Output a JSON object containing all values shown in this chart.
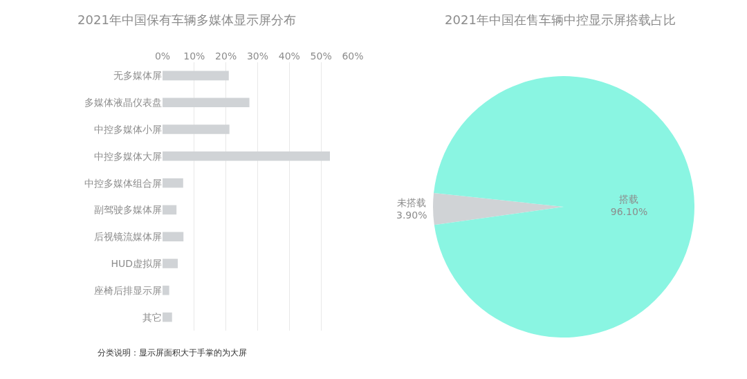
{
  "chart_data": [
    {
      "type": "bar",
      "orientation": "horizontal",
      "title": "2021年中国保有车辆多媒体显示屏分布",
      "categories": [
        "无多媒体屏",
        "多媒体液晶仪表盘",
        "中控多媒体小屏",
        "中控多媒体大屏",
        "中控多媒体组合屏",
        "副驾驶多媒体屏",
        "后视镜流媒体屏",
        "HUD虚拟屏",
        "座椅后排显示屏",
        "其它"
      ],
      "values": [
        20.9,
        27.4,
        21.1,
        52.8,
        6.5,
        4.4,
        6.6,
        4.8,
        2.1,
        3.0
      ],
      "color": "#d0d3d6",
      "xlim": [
        0,
        60
      ],
      "xticks": [
        {
          "value": 0,
          "label": "0%"
        },
        {
          "value": 10,
          "label": "10%"
        },
        {
          "value": 20,
          "label": "20%"
        },
        {
          "value": 30,
          "label": "30%"
        },
        {
          "value": 40,
          "label": "40%"
        },
        {
          "value": 50,
          "label": "50%"
        },
        {
          "value": 60,
          "label": "60%"
        }
      ],
      "grid": "x",
      "legend": false,
      "annotations": [
        "分类说明：显示屏面积大于手掌的为大屏"
      ]
    },
    {
      "type": "pie",
      "title": "2021年中国在售车辆中控显示屏搭载占比",
      "categories": [
        "未搭载",
        "搭载"
      ],
      "values": [
        3.9,
        96.1
      ],
      "value_labels": [
        "3.90%",
        "96.10%"
      ],
      "colors": [
        "#d0d3d6",
        "#8af5e2"
      ],
      "legend": false
    }
  ]
}
